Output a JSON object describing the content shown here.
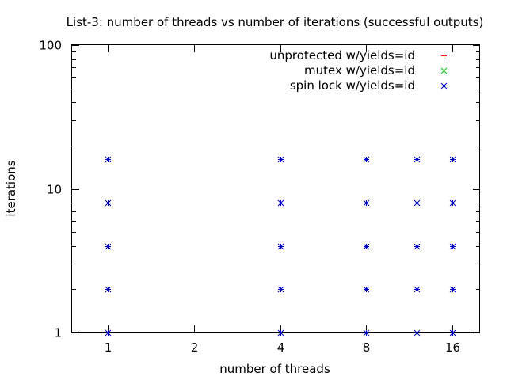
{
  "chart_data": {
    "type": "scatter",
    "title": "List-3: number of threads vs number of iterations (successful outputs)",
    "xlabel": "number of threads",
    "ylabel": "iterations",
    "x_scale": "log2",
    "y_scale": "log10",
    "xlim": [
      0.75,
      20
    ],
    "ylim": [
      1,
      100
    ],
    "x_ticks": [
      1,
      2,
      4,
      8,
      16
    ],
    "x_tick_labels": [
      "1",
      "2",
      "4",
      "8",
      "16"
    ],
    "y_ticks": [
      1,
      10,
      100
    ],
    "y_tick_labels": [
      "1",
      "10",
      "100"
    ],
    "grid": false,
    "legend_position": "top-right",
    "series": [
      {
        "name": "unprotected w/yields=id",
        "marker": "plus",
        "color": "#ff0000",
        "points": []
      },
      {
        "name": "mutex w/yields=id",
        "marker": "cross",
        "color": "#00c000",
        "points": []
      },
      {
        "name": "spin lock w/yields=id",
        "marker": "star",
        "color": "#0000c0",
        "points": [
          [
            1,
            1
          ],
          [
            1,
            2
          ],
          [
            1,
            4
          ],
          [
            1,
            8
          ],
          [
            1,
            16
          ],
          [
            4,
            1
          ],
          [
            4,
            2
          ],
          [
            4,
            4
          ],
          [
            4,
            8
          ],
          [
            4,
            16
          ],
          [
            8,
            1
          ],
          [
            8,
            2
          ],
          [
            8,
            4
          ],
          [
            8,
            8
          ],
          [
            8,
            16
          ],
          [
            12,
            1
          ],
          [
            12,
            2
          ],
          [
            12,
            4
          ],
          [
            12,
            8
          ],
          [
            12,
            16
          ],
          [
            16,
            1
          ],
          [
            16,
            2
          ],
          [
            16,
            4
          ],
          [
            16,
            8
          ],
          [
            16,
            16
          ]
        ]
      }
    ]
  }
}
